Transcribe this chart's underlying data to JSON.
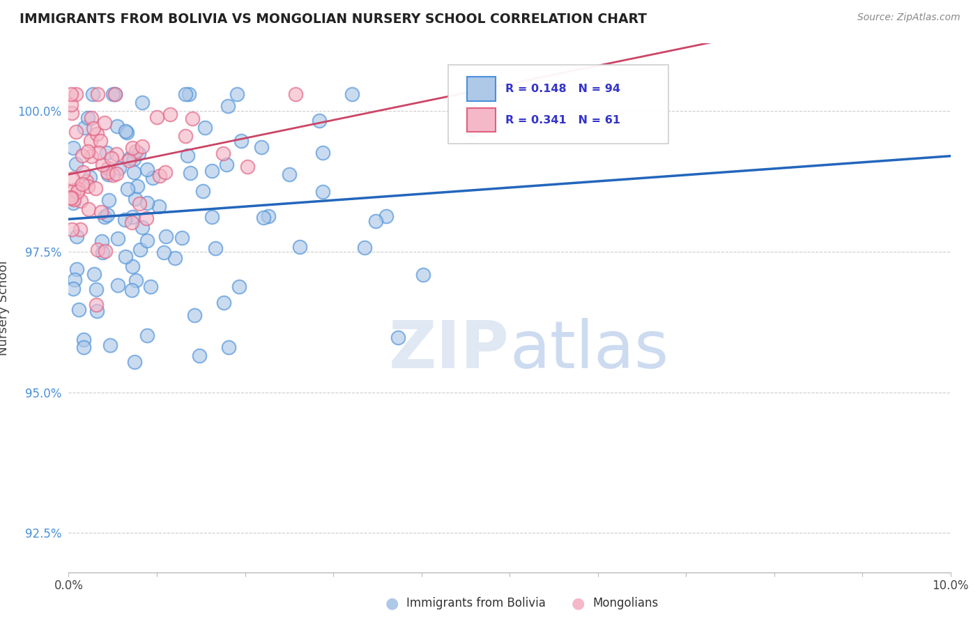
{
  "title": "IMMIGRANTS FROM BOLIVIA VS MONGOLIAN NURSERY SCHOOL CORRELATION CHART",
  "source": "Source: ZipAtlas.com",
  "ylabel": "Nursery School",
  "yticks": [
    92.5,
    95.0,
    97.5,
    100.0
  ],
  "xlim": [
    0.0,
    10.0
  ],
  "ylim": [
    91.8,
    101.2
  ],
  "legend_r_blue": "R = 0.148",
  "legend_n_blue": "N = 94",
  "legend_r_pink": "R = 0.341",
  "legend_n_pink": "N = 61",
  "blue_fill": "#aec8e8",
  "blue_edge": "#4a90d9",
  "pink_fill": "#f4b8c8",
  "pink_edge": "#e06080",
  "trend_blue": "#2266bb",
  "trend_pink": "#cc4466",
  "background_color": "#ffffff",
  "grid_color": "#cccccc",
  "title_color": "#222222",
  "ytick_color": "#4a90d9",
  "watermark_color": "#e0e8f4",
  "legend_text_color": "#3333cc"
}
